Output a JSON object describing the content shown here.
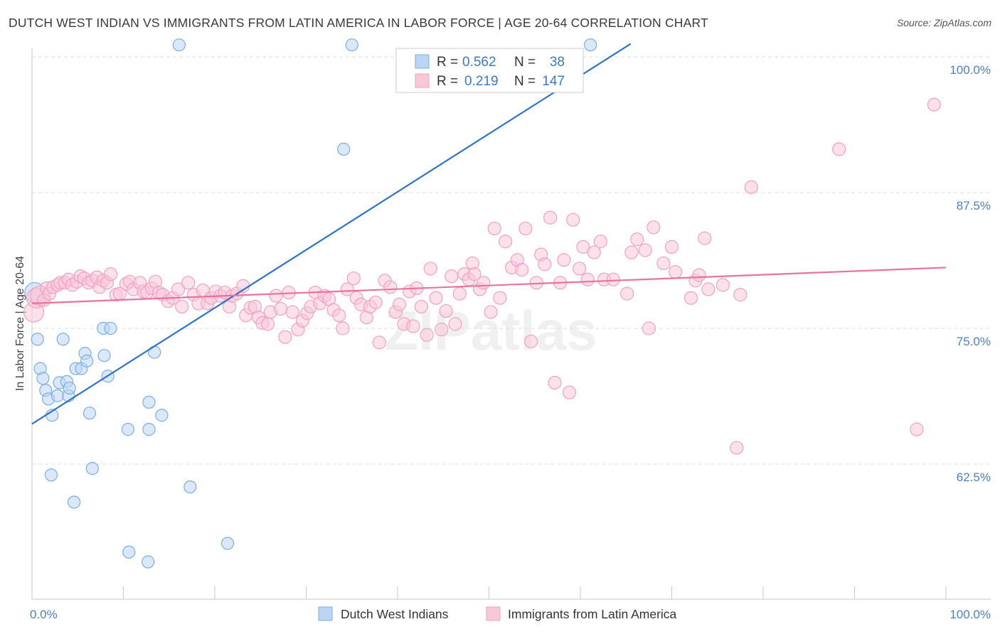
{
  "title": "DUTCH WEST INDIAN VS IMMIGRANTS FROM LATIN AMERICA IN LABOR FORCE | AGE 20-64 CORRELATION CHART",
  "source": "Source: ZipAtlas.com",
  "watermark": "ZIPatlas",
  "colors": {
    "blue": "#7aaee8",
    "blue_line": "#2f74c8",
    "pink": "#f2a2be",
    "pink_line": "#e8739c",
    "axis_label": "#4a80d0",
    "grid": "#dcdcdc"
  },
  "legend": {
    "rows": [
      {
        "r_label": "R =",
        "r_value": "0.562",
        "n_label": "N =",
        "n_value": "38"
      },
      {
        "r_label": "R =",
        "r_value": "0.219",
        "n_label": "N =",
        "n_value": "147"
      }
    ]
  },
  "chart_data": {
    "type": "scatter",
    "ylabel": "In Labor Force | Age 20-64",
    "xlim": [
      0,
      100
    ],
    "ylim": [
      51,
      102
    ],
    "x_tick_labels": [
      "0.0%",
      "100.0%"
    ],
    "y_ticks": [
      {
        "value": 100.0,
        "label": "100.0%"
      },
      {
        "value": 87.5,
        "label": "87.5%"
      },
      {
        "value": 75.0,
        "label": "75.0%"
      },
      {
        "value": 62.5,
        "label": "62.5%"
      }
    ],
    "series": [
      {
        "name": "Dutch West Indians",
        "color": "#7aaee8",
        "trend": {
          "x0": 0,
          "y0": 66.2,
          "x1": 65.5,
          "y1": 101.2
        },
        "points": [
          [
            0.3,
            78.3
          ],
          [
            0.6,
            74.0
          ],
          [
            0.9,
            71.3
          ],
          [
            1.2,
            70.4
          ],
          [
            1.5,
            69.3
          ],
          [
            1.8,
            68.5
          ],
          [
            2.2,
            67.0
          ],
          [
            2.1,
            61.5
          ],
          [
            2.8,
            68.8
          ],
          [
            3.0,
            70.0
          ],
          [
            3.4,
            74.0
          ],
          [
            3.8,
            70.1
          ],
          [
            4.0,
            68.8
          ],
          [
            4.1,
            69.5
          ],
          [
            4.6,
            59.0
          ],
          [
            4.8,
            71.3
          ],
          [
            5.4,
            71.3
          ],
          [
            5.8,
            72.7
          ],
          [
            6.0,
            72.0
          ],
          [
            6.3,
            67.2
          ],
          [
            6.6,
            62.1
          ],
          [
            7.8,
            75.0
          ],
          [
            7.9,
            72.5
          ],
          [
            8.3,
            70.6
          ],
          [
            8.6,
            75.0
          ],
          [
            10.5,
            65.7
          ],
          [
            10.6,
            54.4
          ],
          [
            12.7,
            53.5
          ],
          [
            12.8,
            65.7
          ],
          [
            12.8,
            68.2
          ],
          [
            13.4,
            72.8
          ],
          [
            14.2,
            67.0
          ],
          [
            17.3,
            60.4
          ],
          [
            21.4,
            55.2
          ],
          [
            16.1,
            101.1
          ],
          [
            34.1,
            91.5
          ],
          [
            35.0,
            101.1
          ],
          [
            61.1,
            101.1
          ]
        ]
      },
      {
        "name": "Immigrants from Latin America",
        "color": "#f2a2be",
        "trend": {
          "x0": 0,
          "y0": 77.3,
          "x1": 100,
          "y1": 80.6
        },
        "points": [
          [
            0.2,
            76.5
          ],
          [
            0.5,
            77.8
          ],
          [
            0.9,
            78.0
          ],
          [
            1.3,
            77.6
          ],
          [
            1.6,
            78.7
          ],
          [
            1.9,
            78.2
          ],
          [
            2.3,
            78.8
          ],
          [
            2.8,
            79.0
          ],
          [
            3.1,
            79.2
          ],
          [
            3.6,
            79.2
          ],
          [
            4.0,
            79.5
          ],
          [
            4.4,
            79.0
          ],
          [
            4.9,
            79.3
          ],
          [
            5.3,
            79.8
          ],
          [
            5.7,
            79.6
          ],
          [
            6.2,
            79.2
          ],
          [
            6.6,
            79.4
          ],
          [
            7.1,
            79.7
          ],
          [
            7.4,
            78.8
          ],
          [
            7.8,
            79.4
          ],
          [
            8.2,
            79.2
          ],
          [
            8.6,
            80.0
          ],
          [
            9.2,
            78.1
          ],
          [
            9.6,
            78.2
          ],
          [
            10.3,
            79.1
          ],
          [
            10.7,
            79.3
          ],
          [
            11.1,
            78.6
          ],
          [
            11.8,
            79.2
          ],
          [
            12.2,
            78.4
          ],
          [
            12.6,
            78.3
          ],
          [
            13.1,
            78.7
          ],
          [
            13.5,
            79.3
          ],
          [
            13.9,
            78.3
          ],
          [
            14.3,
            78.1
          ],
          [
            14.9,
            77.5
          ],
          [
            15.4,
            77.8
          ],
          [
            16.0,
            78.6
          ],
          [
            16.4,
            77.0
          ],
          [
            17.1,
            79.2
          ],
          [
            17.7,
            78.1
          ],
          [
            18.2,
            77.3
          ],
          [
            18.7,
            78.5
          ],
          [
            19.2,
            77.3
          ],
          [
            19.6,
            77.8
          ],
          [
            20.1,
            78.4
          ],
          [
            20.6,
            78.0
          ],
          [
            21.1,
            78.3
          ],
          [
            21.6,
            77.0
          ],
          [
            21.9,
            78.0
          ],
          [
            22.4,
            78.2
          ],
          [
            23.1,
            78.9
          ],
          [
            23.4,
            76.2
          ],
          [
            23.9,
            76.9
          ],
          [
            24.4,
            77.0
          ],
          [
            24.8,
            76.0
          ],
          [
            25.2,
            75.5
          ],
          [
            25.8,
            75.4
          ],
          [
            26.1,
            76.5
          ],
          [
            26.7,
            78.0
          ],
          [
            27.2,
            76.8
          ],
          [
            27.7,
            74.2
          ],
          [
            28.1,
            78.3
          ],
          [
            28.5,
            76.5
          ],
          [
            29.1,
            74.9
          ],
          [
            29.6,
            75.7
          ],
          [
            30.1,
            76.4
          ],
          [
            30.5,
            77.0
          ],
          [
            31.0,
            78.3
          ],
          [
            31.5,
            77.3
          ],
          [
            32.0,
            78.0
          ],
          [
            32.5,
            77.7
          ],
          [
            33.0,
            76.7
          ],
          [
            33.6,
            76.2
          ],
          [
            34.0,
            75.0
          ],
          [
            34.5,
            78.6
          ],
          [
            35.2,
            79.6
          ],
          [
            35.5,
            77.8
          ],
          [
            36.0,
            77.2
          ],
          [
            36.6,
            76.0
          ],
          [
            37.0,
            77.0
          ],
          [
            37.6,
            77.4
          ],
          [
            38.0,
            73.7
          ],
          [
            38.6,
            79.4
          ],
          [
            39.2,
            78.8
          ],
          [
            39.8,
            76.5
          ],
          [
            40.2,
            77.2
          ],
          [
            40.7,
            75.4
          ],
          [
            41.3,
            78.4
          ],
          [
            41.7,
            75.2
          ],
          [
            42.1,
            78.7
          ],
          [
            42.6,
            77.0
          ],
          [
            43.2,
            74.4
          ],
          [
            43.6,
            80.5
          ],
          [
            44.2,
            77.8
          ],
          [
            44.8,
            74.9
          ],
          [
            45.3,
            76.6
          ],
          [
            45.9,
            79.8
          ],
          [
            46.3,
            75.4
          ],
          [
            46.8,
            78.2
          ],
          [
            47.3,
            80.0
          ],
          [
            47.8,
            79.5
          ],
          [
            48.2,
            81.0
          ],
          [
            48.4,
            80.0
          ],
          [
            49.0,
            78.6
          ],
          [
            49.4,
            79.2
          ],
          [
            50.2,
            76.5
          ],
          [
            50.6,
            84.2
          ],
          [
            51.2,
            77.8
          ],
          [
            51.8,
            83.0
          ],
          [
            52.5,
            80.6
          ],
          [
            53.1,
            81.3
          ],
          [
            53.6,
            80.4
          ],
          [
            54.0,
            84.2
          ],
          [
            54.6,
            73.8
          ],
          [
            55.2,
            79.2
          ],
          [
            55.7,
            81.8
          ],
          [
            56.1,
            80.9
          ],
          [
            56.7,
            85.2
          ],
          [
            57.2,
            70.0
          ],
          [
            57.8,
            79.2
          ],
          [
            58.2,
            81.3
          ],
          [
            58.8,
            69.1
          ],
          [
            59.2,
            85.0
          ],
          [
            59.9,
            80.5
          ],
          [
            60.3,
            82.5
          ],
          [
            60.8,
            79.5
          ],
          [
            61.5,
            82.0
          ],
          [
            62.2,
            83.0
          ],
          [
            62.6,
            79.5
          ],
          [
            63.6,
            79.5
          ],
          [
            65.1,
            78.2
          ],
          [
            65.6,
            82.0
          ],
          [
            66.2,
            83.2
          ],
          [
            67.1,
            82.2
          ],
          [
            67.5,
            75.0
          ],
          [
            68.0,
            84.3
          ],
          [
            69.1,
            81.0
          ],
          [
            70.0,
            82.5
          ],
          [
            70.4,
            80.2
          ],
          [
            72.1,
            77.8
          ],
          [
            72.6,
            79.4
          ],
          [
            73.0,
            79.9
          ],
          [
            73.6,
            83.3
          ],
          [
            74.0,
            78.6
          ],
          [
            75.6,
            79.0
          ],
          [
            77.1,
            64.0
          ],
          [
            77.5,
            78.1
          ],
          [
            78.7,
            88.0
          ],
          [
            88.3,
            91.5
          ],
          [
            96.8,
            65.7
          ],
          [
            98.7,
            95.6
          ]
        ]
      }
    ],
    "legend_bottom": [
      "Dutch West Indians",
      "Immigrants from Latin America"
    ]
  }
}
